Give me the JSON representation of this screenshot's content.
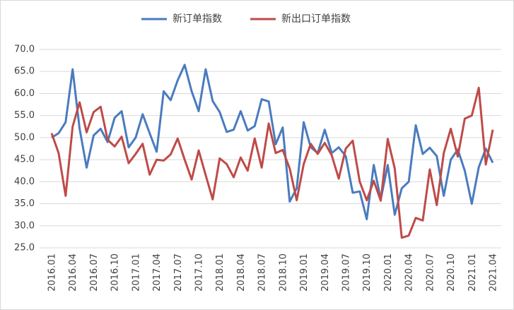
{
  "chart_data": {
    "type": "line",
    "categories": [
      "2016.01",
      null,
      null,
      "2016.04",
      null,
      null,
      "2016.07",
      null,
      null,
      "2016.10",
      null,
      null,
      "2017.01",
      null,
      null,
      "2017.04",
      null,
      null,
      "2017.07",
      null,
      null,
      "2017.10",
      null,
      null,
      "2018.01",
      null,
      null,
      "2018.04",
      null,
      null,
      "2018.07",
      null,
      null,
      "2018.10",
      null,
      null,
      "2019.01",
      null,
      null,
      "2019.04",
      null,
      null,
      "2019.07",
      null,
      null,
      "2019.10",
      null,
      null,
      "2020.01",
      null,
      null,
      "2020.04",
      null,
      null,
      "2020.07",
      null,
      null,
      "2020.10",
      null,
      null,
      "2021.01",
      null,
      null,
      "2021.04"
    ],
    "series": [
      {
        "name": "新订单指数",
        "color": "#4a7bbf",
        "values": [
          50.0,
          51,
          53.5,
          65.5,
          52,
          43.2,
          50.5,
          52,
          49,
          54.5,
          56,
          47.8,
          50,
          55.3,
          51,
          46.8,
          60.5,
          58.5,
          63,
          66.5,
          60.5,
          56,
          65.5,
          58.3,
          55.8,
          51.3,
          51.8,
          56,
          51.6,
          52.6,
          58.7,
          58.2,
          48.5,
          52.3,
          35.5,
          38.5,
          53.5,
          47.8,
          46.5,
          51.8,
          46.5,
          47.8,
          45.8,
          37.5,
          37.8,
          31.5,
          43.8,
          36,
          43.8,
          32.5,
          38.5,
          40,
          52.8,
          46.3,
          47.7,
          45.8,
          36.8,
          45,
          47.3,
          42.5,
          35,
          43.3,
          47.5,
          44.3
        ]
      },
      {
        "name": "新出口订单指数",
        "color": "#be4b48",
        "values": [
          51,
          46.5,
          36.8,
          52.5,
          58,
          51.2,
          55.8,
          57,
          49.5,
          48,
          50.2,
          44.2,
          46.3,
          48.6,
          41.6,
          45,
          44.8,
          46.2,
          49.8,
          45,
          40.5,
          47.1,
          41.5,
          36,
          45.3,
          44,
          41,
          45.5,
          42.5,
          49.8,
          43.2,
          53.2,
          46.5,
          47.2,
          43,
          35.8,
          44,
          48.6,
          46.3,
          48.8,
          46,
          40.7,
          47.5,
          49.3,
          40,
          35.8,
          40.2,
          35.7,
          49.7,
          43,
          27.3,
          27.8,
          31.8,
          31.2,
          42.8,
          34.7,
          46.5,
          52,
          45.7,
          54.3,
          55,
          61.3,
          43.9,
          51.8
        ]
      }
    ],
    "ylim": [
      25,
      70
    ],
    "yticks": [
      {
        "value": 25,
        "label": "25.0"
      },
      {
        "value": 30,
        "label": "30.0"
      },
      {
        "value": 35,
        "label": "35.0"
      },
      {
        "value": 40,
        "label": "40.0"
      },
      {
        "value": 45,
        "label": "45.0"
      },
      {
        "value": 50,
        "label": "50.0"
      },
      {
        "value": 55,
        "label": "55.0"
      },
      {
        "value": 60,
        "label": "60.0"
      },
      {
        "value": 65,
        "label": "65.0"
      },
      {
        "value": 70,
        "label": "70.0"
      }
    ],
    "grid": true,
    "legend": "top"
  }
}
